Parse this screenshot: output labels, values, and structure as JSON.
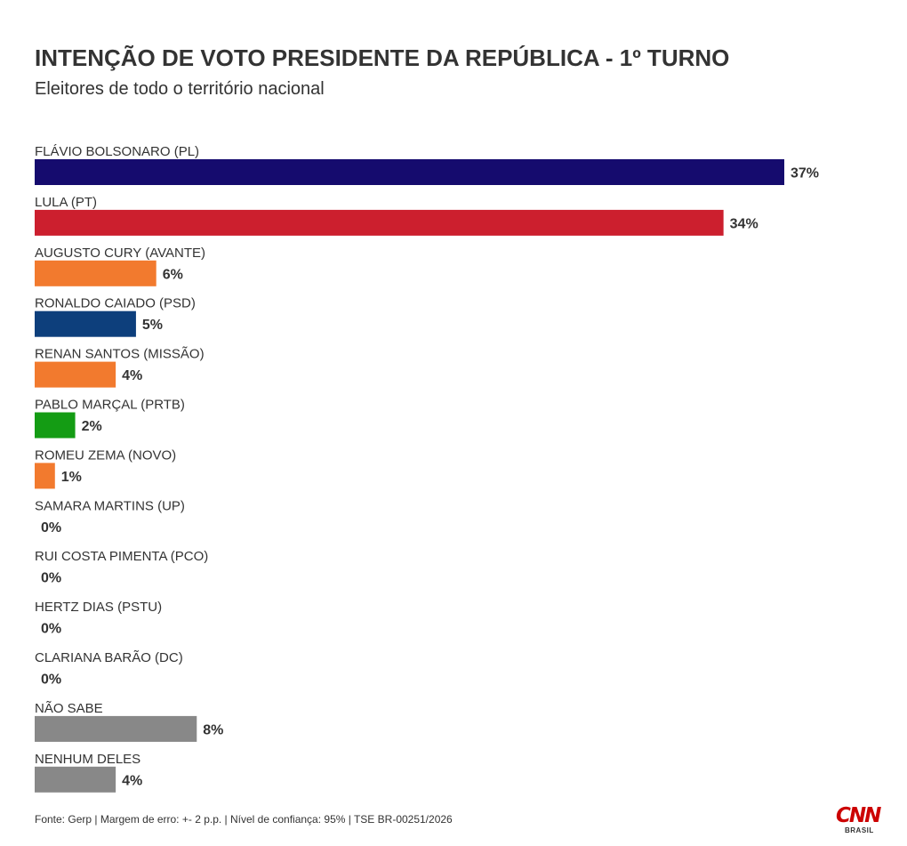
{
  "title": "INTENÇÃO DE VOTO PRESIDENTE DA REPÚBLICA - 1º TURNO",
  "subtitle": "Eleitores de todo o território nacional",
  "footer": "Fonte: Gerp | Margem de erro: +- 2 p.p. | Nível de confiança: 95% | TSE BR-00251/2026",
  "logo": {
    "mark": "CNN",
    "sub": "BRASIL"
  },
  "chart_data": {
    "type": "bar",
    "orientation": "horizontal",
    "categories": [
      "FLÁVIO BOLSONARO (PL)",
      "LULA (PT)",
      "AUGUSTO CURY (AVANTE)",
      "RONALDO CAIADO (PSD)",
      "RENAN SANTOS (MISSÃO)",
      "PABLO MARÇAL (PRTB)",
      "ROMEU ZEMA (NOVO)",
      "SAMARA MARTINS (UP)",
      "RUI COSTA PIMENTA (PCO)",
      "HERTZ DIAS (PSTU)",
      "CLARIANA BARÃO (DC)",
      "NÃO SABE",
      "NENHUM DELES"
    ],
    "values": [
      37,
      34,
      6,
      5,
      4,
      2,
      1,
      0,
      0,
      0,
      0,
      8,
      4
    ],
    "labels": [
      "37%",
      "34%",
      "6%",
      "5%",
      "4%",
      "2%",
      "1%",
      "0%",
      "0%",
      "0%",
      "0%",
      "8%",
      "4%"
    ],
    "colors": [
      "#150b6e",
      "#cc1f2e",
      "#f27a2e",
      "#0d3f7c",
      "#f27a2e",
      "#149c14",
      "#f27a2e",
      "#888888",
      "#888888",
      "#888888",
      "#888888",
      "#888888",
      "#888888"
    ],
    "xlim": [
      0,
      37
    ],
    "grid": false,
    "legend": false
  }
}
